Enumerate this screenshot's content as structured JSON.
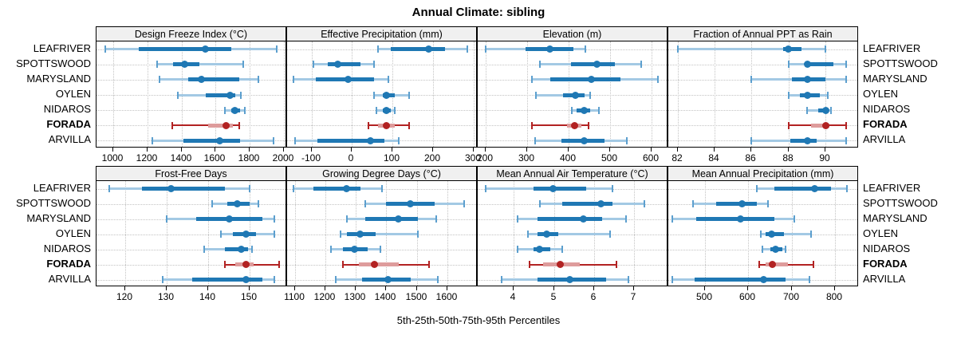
{
  "title": "Annual Climate: sibling",
  "footer": "5th-25th-50th-75th-95th Percentiles",
  "sites": [
    "LEAFRIVER",
    "SPOTTSWOOD",
    "MARYSLAND",
    "OYLEN",
    "NIDAROS",
    "FORADA",
    "ARVILLA"
  ],
  "highlight_site": "FORADA",
  "percentile_labels": [
    "5th",
    "25th",
    "50th",
    "75th",
    "95th"
  ],
  "colors": {
    "blue": "#1F78B4",
    "blue_light": "#A3C9E4",
    "blue_cap": "#5C9FCE",
    "red": "#B22222",
    "red_band": "#DE9C9C",
    "grid": "#C3C3C3",
    "strip_bg": "#F0F0F0",
    "frame": "#000000"
  },
  "chart_data": [
    {
      "type": "interval-dotplot",
      "title": "Design Freeze Index (°C)",
      "xlim": [
        900,
        2020
      ],
      "ticks": [
        1000,
        1200,
        1400,
        1600,
        1800,
        2000
      ],
      "values": [
        [
          950,
          1150,
          1540,
          1690,
          1960
        ],
        [
          1255,
          1350,
          1420,
          1505,
          1760
        ],
        [
          1270,
          1440,
          1515,
          1740,
          1850
        ],
        [
          1380,
          1540,
          1685,
          1715,
          1750
        ],
        [
          1655,
          1690,
          1715,
          1745,
          1770
        ],
        [
          1345,
          1555,
          1660,
          1700,
          1740
        ],
        [
          1230,
          1410,
          1625,
          1745,
          1940
        ]
      ]
    },
    {
      "type": "interval-dotplot",
      "title": "Effective Precipitation (mm)",
      "xlim": [
        -160,
        310
      ],
      "ticks": [
        -100,
        0,
        100,
        200,
        300
      ],
      "values": [
        [
          65,
          95,
          190,
          230,
          285
        ],
        [
          -95,
          -60,
          -35,
          20,
          55
        ],
        [
          -145,
          -90,
          -10,
          55,
          90
        ],
        [
          55,
          75,
          85,
          105,
          140
        ],
        [
          60,
          75,
          85,
          95,
          105
        ],
        [
          40,
          65,
          85,
          105,
          140
        ],
        [
          -140,
          -85,
          45,
          80,
          115
        ]
      ]
    },
    {
      "type": "interval-dotplot",
      "title": "Elevation (m)",
      "xlim": [
        180,
        640
      ],
      "ticks": [
        200,
        300,
        400,
        500,
        600
      ],
      "values": [
        [
          200,
          295,
          355,
          410,
          440
        ],
        [
          330,
          405,
          468,
          512,
          575
        ],
        [
          310,
          355,
          455,
          525,
          615
        ],
        [
          320,
          385,
          415,
          437,
          452
        ],
        [
          408,
          418,
          437,
          452,
          472
        ],
        [
          310,
          395,
          413,
          430,
          448
        ],
        [
          318,
          382,
          437,
          487,
          540
        ]
      ]
    },
    {
      "type": "interval-dotplot",
      "title": "Fraction of Annual PPT as Rain",
      "xlim": [
        81.5,
        91.8
      ],
      "ticks": [
        82,
        84,
        86,
        88,
        90
      ],
      "values": [
        [
          82,
          87.7,
          88,
          88.7,
          90
        ],
        [
          88,
          88.9,
          89,
          90.4,
          91.1
        ],
        [
          86,
          88.2,
          89,
          90,
          91.1
        ],
        [
          88,
          88.6,
          89,
          89.7,
          90.1
        ],
        [
          89,
          89.6,
          90,
          90.1,
          90.3
        ],
        [
          88,
          89.2,
          90,
          90.2,
          91.1
        ],
        [
          86,
          88.1,
          89,
          89.5,
          91.1
        ]
      ]
    },
    {
      "type": "interval-dotplot",
      "title": "Frost-Free Days",
      "xlim": [
        113,
        159
      ],
      "ticks": [
        120,
        130,
        140,
        150
      ],
      "values": [
        [
          116,
          124,
          131,
          144,
          150
        ],
        [
          141,
          144.5,
          147,
          150,
          152
        ],
        [
          130,
          137,
          145,
          153,
          156
        ],
        [
          143,
          146,
          149,
          151.5,
          156
        ],
        [
          139,
          144,
          148,
          149.5,
          150.5
        ],
        [
          144,
          146.5,
          149,
          151,
          157
        ],
        [
          129,
          136,
          149,
          153,
          156
        ]
      ]
    },
    {
      "type": "interval-dotplot",
      "title": "Growing Degree Days (°C)",
      "xlim": [
        1075,
        1700
      ],
      "ticks": [
        1100,
        1200,
        1300,
        1400,
        1500,
        1600
      ],
      "values": [
        [
          1095,
          1160,
          1270,
          1315,
          1385
        ],
        [
          1330,
          1400,
          1478,
          1560,
          1655
        ],
        [
          1270,
          1330,
          1440,
          1505,
          1565
        ],
        [
          1250,
          1272,
          1315,
          1365,
          1505
        ],
        [
          1220,
          1258,
          1295,
          1338,
          1380
        ],
        [
          1258,
          1310,
          1362,
          1440,
          1540
        ],
        [
          1235,
          1320,
          1405,
          1480,
          1570
        ]
      ]
    },
    {
      "type": "interval-dotplot",
      "title": "Mean Annual Air Temperature (°C)",
      "xlim": [
        3.1,
        7.85
      ],
      "ticks": [
        4,
        5,
        6,
        7
      ],
      "values": [
        [
          3.3,
          4.5,
          4.97,
          5.8,
          6.45
        ],
        [
          4.65,
          5.2,
          6.17,
          6.45,
          7.25
        ],
        [
          4.1,
          4.6,
          5.73,
          6.2,
          6.8
        ],
        [
          4.35,
          4.6,
          4.82,
          5.1,
          6.4
        ],
        [
          4.1,
          4.5,
          4.65,
          4.9,
          5.2
        ],
        [
          4.4,
          4.72,
          5.15,
          5.65,
          6.55
        ],
        [
          3.7,
          4.6,
          5.4,
          6.3,
          6.85
        ]
      ]
    },
    {
      "type": "interval-dotplot",
      "title": "Mean Annual Precipitation (mm)",
      "xlim": [
        415,
        855
      ],
      "ticks": [
        500,
        600,
        700,
        800
      ],
      "values": [
        [
          620,
          660,
          752,
          790,
          828
        ],
        [
          472,
          525,
          585,
          620,
          645
        ],
        [
          425,
          480,
          582,
          660,
          705
        ],
        [
          628,
          640,
          653,
          682,
          745
        ],
        [
          632,
          650,
          663,
          678,
          686
        ],
        [
          625,
          640,
          655,
          692,
          750
        ],
        [
          425,
          475,
          635,
          685,
          740
        ]
      ]
    }
  ]
}
